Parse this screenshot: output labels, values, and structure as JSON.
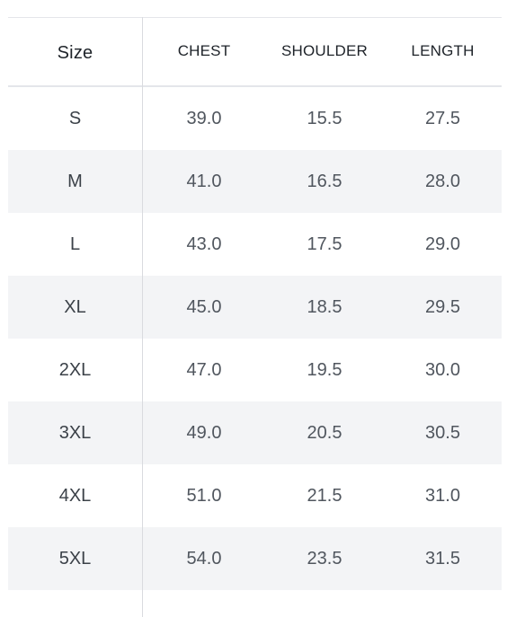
{
  "size_chart": {
    "columns": [
      "Size",
      "CHEST",
      "SHOULDER",
      "LENGTH"
    ],
    "rows": [
      {
        "size": "S",
        "chest": "39.0",
        "shoulder": "15.5",
        "length": "27.5"
      },
      {
        "size": "M",
        "chest": "41.0",
        "shoulder": "16.5",
        "length": "28.0"
      },
      {
        "size": "L",
        "chest": "43.0",
        "shoulder": "17.5",
        "length": "29.0"
      },
      {
        "size": "XL",
        "chest": "45.0",
        "shoulder": "18.5",
        "length": "29.5"
      },
      {
        "size": "2XL",
        "chest": "47.0",
        "shoulder": "19.5",
        "length": "30.0"
      },
      {
        "size": "3XL",
        "chest": "49.0",
        "shoulder": "20.5",
        "length": "30.5"
      },
      {
        "size": "4XL",
        "chest": "51.0",
        "shoulder": "21.5",
        "length": "31.0"
      },
      {
        "size": "5XL",
        "chest": "54.0",
        "shoulder": "23.5",
        "length": "31.5"
      }
    ]
  },
  "colors": {
    "stripe": "#f3f4f6",
    "rule": "#e4e6ea",
    "header_text": "#1e2329",
    "cell_text": "#50565e"
  }
}
